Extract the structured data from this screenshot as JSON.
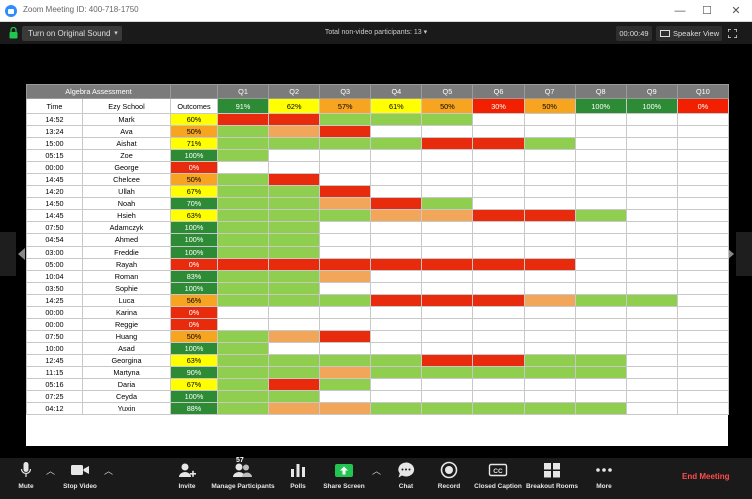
{
  "window": {
    "title": "Zoom Meeting ID: 400-718-1750",
    "minimize": "—",
    "maximize": "☐",
    "close": "✕"
  },
  "topbar": {
    "original_sound": "Turn on Original Sound",
    "participants_text": "Total non-video participants: 13",
    "timer": "00:00:49",
    "speaker_view": "Speaker View"
  },
  "sheet": {
    "title": "Algebra Assessment",
    "col_time": "Time",
    "col_school": "Ezy School",
    "col_outcomes": "Outcomes",
    "questions": [
      "Q1",
      "Q2",
      "Q3",
      "Q4",
      "Q5",
      "Q6",
      "Q7",
      "Q8",
      "Q9",
      "Q10"
    ],
    "question_pcts": [
      "91%",
      "62%",
      "57%",
      "61%",
      "50%",
      "30%",
      "50%",
      "100%",
      "100%",
      "0%"
    ],
    "question_pct_colors": [
      "#2e8b35",
      "#ffff00",
      "#f7a521",
      "#ffff00",
      "#f7a521",
      "#f02000",
      "#f7a521",
      "#2e8b35",
      "#2e8b35",
      "#f02000"
    ],
    "palette": {
      "G": "#8fce4f",
      "R": "#e82b0c",
      "O": "#f2a65a",
      "W": "#ffffff",
      "Y": "#ffff00",
      "DG": "#2e8b35",
      "AM": "#f7a521"
    },
    "rows": [
      {
        "time": "14:52",
        "name": "Mark",
        "outcome": "60%",
        "oc": "Y",
        "cells": "RRGGGWWWWW"
      },
      {
        "time": "13:24",
        "name": "Ava",
        "outcome": "50%",
        "oc": "AM",
        "cells": "GORWWWWWWW"
      },
      {
        "time": "15:00",
        "name": "Aishat",
        "outcome": "71%",
        "oc": "Y",
        "cells": "GGGGRRGWWW"
      },
      {
        "time": "05:15",
        "name": "Zoe",
        "outcome": "100%",
        "oc": "DG",
        "cells": "GWWWWWWWWW"
      },
      {
        "time": "00:00",
        "name": "George",
        "outcome": "0%",
        "oc": "R",
        "cells": "WWWWWWWWWW"
      },
      {
        "time": "14:45",
        "name": "Chelcee",
        "outcome": "50%",
        "oc": "AM",
        "cells": "GRWWWWWWWW"
      },
      {
        "time": "14:20",
        "name": "Ullah",
        "outcome": "67%",
        "oc": "Y",
        "cells": "GGRWWWWWWW"
      },
      {
        "time": "14:50",
        "name": "Noah",
        "outcome": "70%",
        "oc": "DG",
        "cells": "GGORGWWWWW"
      },
      {
        "time": "14:45",
        "name": "Hsieh",
        "outcome": "63%",
        "oc": "Y",
        "cells": "GGGOORRGWW"
      },
      {
        "time": "07:50",
        "name": "Adamczyk",
        "outcome": "100%",
        "oc": "DG",
        "cells": "GGWWWWWWWW"
      },
      {
        "time": "04:54",
        "name": "Ahmed",
        "outcome": "100%",
        "oc": "DG",
        "cells": "GGWWWWWWWW"
      },
      {
        "time": "03:00",
        "name": "Freddie",
        "outcome": "100%",
        "oc": "DG",
        "cells": "GGWWWWWWWW"
      },
      {
        "time": "05:00",
        "name": "Rayah",
        "outcome": "0%",
        "oc": "R",
        "cells": "RRRRRRRWWW"
      },
      {
        "time": "10:04",
        "name": "Roman",
        "outcome": "83%",
        "oc": "DG",
        "cells": "GGOWWWWWWW"
      },
      {
        "time": "03:50",
        "name": "Sophie",
        "outcome": "100%",
        "oc": "DG",
        "cells": "GGWWWWWWWW"
      },
      {
        "time": "14:25",
        "name": "Luca",
        "outcome": "56%",
        "oc": "AM",
        "cells": "GGGRRROGGW"
      },
      {
        "time": "00:00",
        "name": "Karina",
        "outcome": "0%",
        "oc": "R",
        "cells": "WWWWWWWWWW"
      },
      {
        "time": "00:00",
        "name": "Reggie",
        "outcome": "0%",
        "oc": "R",
        "cells": "WWWWWWWWWW"
      },
      {
        "time": "07:50",
        "name": "Huang",
        "outcome": "50%",
        "oc": "AM",
        "cells": "GORWWWWWWW"
      },
      {
        "time": "10:00",
        "name": "Asad",
        "outcome": "100%",
        "oc": "DG",
        "cells": "GWWWWWWWWW"
      },
      {
        "time": "12:45",
        "name": "Georgina",
        "outcome": "63%",
        "oc": "Y",
        "cells": "GGGGRRGGWW"
      },
      {
        "time": "11:15",
        "name": "Martyna",
        "outcome": "90%",
        "oc": "DG",
        "cells": "GGOGGGGGWW"
      },
      {
        "time": "05:16",
        "name": "Daria",
        "outcome": "67%",
        "oc": "Y",
        "cells": "GRGWWWWWWW"
      },
      {
        "time": "07:25",
        "name": "Ceyda",
        "outcome": "100%",
        "oc": "DG",
        "cells": "GGWWWWWWWW"
      },
      {
        "time": "04:12",
        "name": "Yuxin",
        "outcome": "88%",
        "oc": "DG",
        "cells": "GOOGGGGGWW"
      }
    ]
  },
  "toolbar": {
    "mute": "Mute",
    "stop_video": "Stop Video",
    "invite": "Invite",
    "manage_participants": "Manage Participants",
    "participant_count": "57",
    "polls": "Polls",
    "share_screen": "Share Screen",
    "chat": "Chat",
    "record": "Record",
    "closed_caption": "Closed Caption",
    "breakout_rooms": "Breakout Rooms",
    "more": "More",
    "end_meeting": "End Meeting"
  }
}
